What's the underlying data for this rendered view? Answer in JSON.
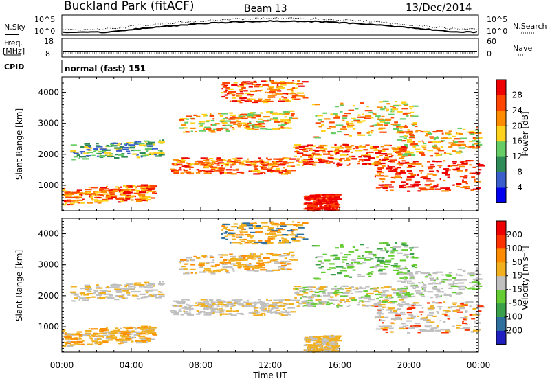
{
  "header": {
    "title": "Buckland Park (fitACF)",
    "beam": "Beam 13",
    "date": "13/Dec/2014"
  },
  "noise_panel": {
    "left_label": "N.Sky",
    "right_label": "N.Search",
    "left_ticks": [
      "10^5",
      "10^0"
    ],
    "right_ticks": [
      "10^5",
      "10^0"
    ]
  },
  "freq_panel": {
    "left_label_line1": "Freq.",
    "left_label_line2": "[MHz]",
    "right_label": "Nave",
    "left_ticks": [
      "18",
      "8"
    ],
    "right_ticks": [
      "60",
      "0"
    ]
  },
  "cpid_panel": {
    "label": "CPID",
    "text": "normal (fast) 151"
  },
  "x_axis": {
    "label": "Time UT",
    "ticks": [
      "00:00",
      "04:00",
      "08:00",
      "12:00",
      "16:00",
      "20:00",
      "00:00"
    ]
  },
  "power_panel": {
    "ylabel": "Slant Range [km]",
    "yticks": [
      "1000",
      "2000",
      "3000",
      "4000"
    ],
    "colorbar_label": "Power [dB]",
    "colorbar_ticks": [
      "4",
      "8",
      "12",
      "16",
      "20",
      "24",
      "28"
    ],
    "colors": [
      "#0000ee",
      "#3a5fcd",
      "#2e8b57",
      "#66cd66",
      "#ffd21e",
      "#ff8c00",
      "#ff4500",
      "#ee0000"
    ]
  },
  "velocity_panel": {
    "ylabel": "Slant Range [km]",
    "yticks": [
      "1000",
      "2000",
      "3000",
      "4000"
    ],
    "colorbar_label": "Velocity [m s⁻¹]",
    "colorbar_ticks": [
      "200",
      "100",
      "50",
      "15",
      "-15",
      "-50",
      "-100",
      "-200"
    ],
    "colors": [
      "#2020c0",
      "#2e6f9e",
      "#3aa04a",
      "#66cc33",
      "#c0c0c0",
      "#f0b020",
      "#ff8c00",
      "#ff3300",
      "#ee0000"
    ]
  },
  "chart_data": {
    "type": "heatmap",
    "x_range_hours": [
      0,
      24
    ],
    "y_range_km": [
      180,
      4500
    ],
    "panels": [
      "Power [dB]",
      "Velocity [m s⁻¹]"
    ]
  }
}
